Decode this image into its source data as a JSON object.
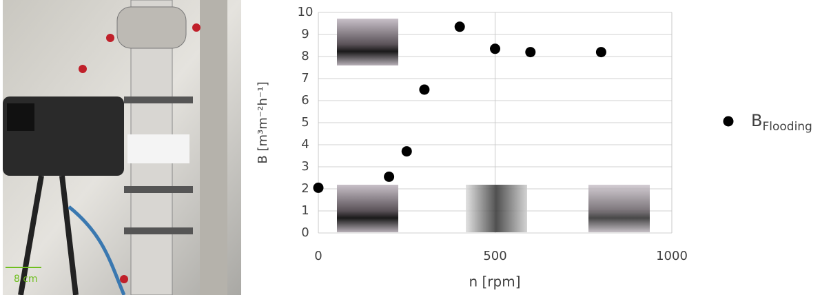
{
  "chart_data": {
    "type": "scatter",
    "x_label": "n [rpm]",
    "y_label": "B [m³m⁻²h⁻¹]",
    "series": [
      {
        "name": "B",
        "name_subscript": "Flooding",
        "color": "#000000",
        "x": [
          0,
          200,
          250,
          300,
          400,
          500,
          600,
          800
        ],
        "values": [
          2.05,
          2.55,
          3.7,
          6.5,
          9.35,
          8.35,
          8.2,
          8.2
        ]
      }
    ],
    "xlim": [
      0,
      1000
    ],
    "xticks": [
      0,
      500,
      1000
    ],
    "ylim": [
      0,
      10
    ],
    "yticks": [
      0,
      1,
      2,
      3,
      4,
      5,
      6,
      7,
      8,
      9,
      10
    ],
    "grid": true,
    "legend": "right",
    "photo_scale_label": "8 cm"
  }
}
